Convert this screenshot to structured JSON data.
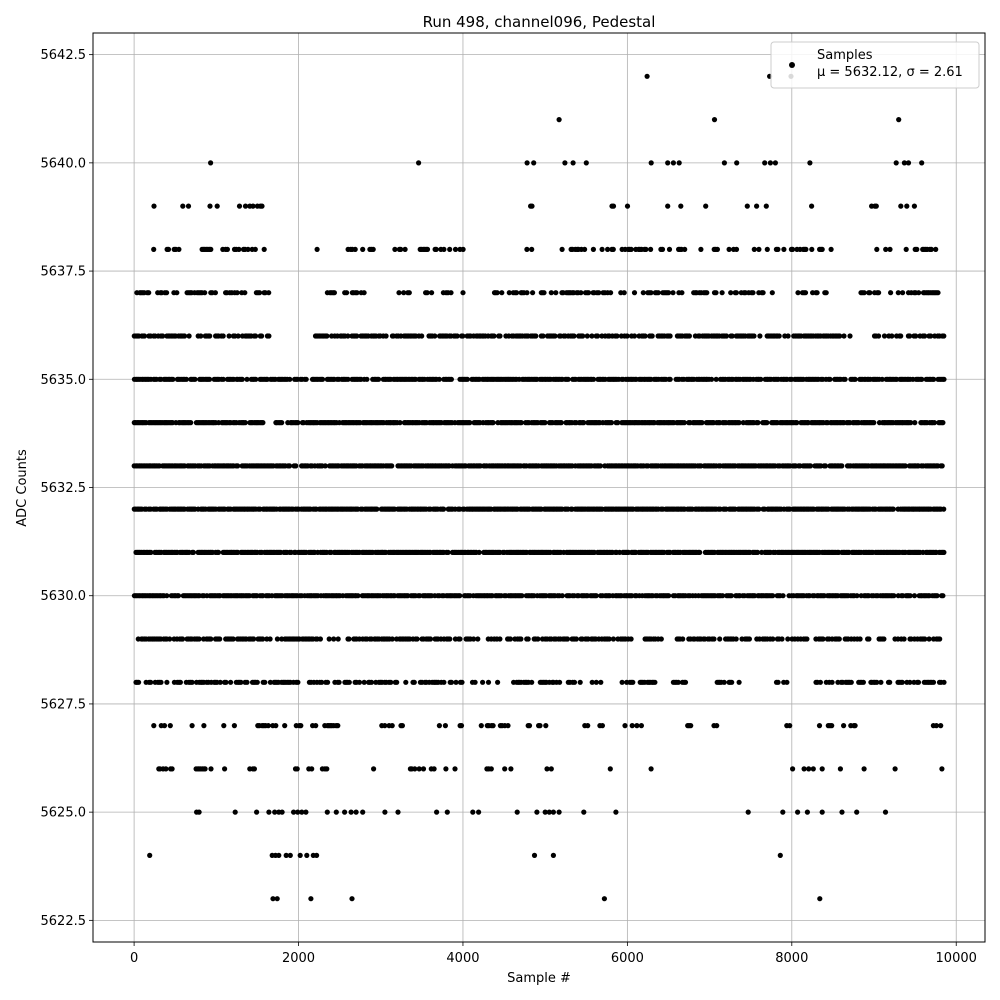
{
  "chart_data": {
    "type": "scatter",
    "title": "Run 498, channel096, Pedestal",
    "xlabel": "Sample #",
    "ylabel": "ADC Counts",
    "xlim": [
      -500,
      10350
    ],
    "ylim": [
      5622.0,
      5643.0
    ],
    "x_ticks": [
      0,
      2000,
      4000,
      6000,
      8000,
      10000
    ],
    "x_tick_labels": [
      "0",
      "2000",
      "4000",
      "6000",
      "8000",
      "10000"
    ],
    "y_ticks": [
      5622.5,
      5625.0,
      5627.5,
      5630.0,
      5632.5,
      5635.0,
      5637.5,
      5640.0,
      5642.5
    ],
    "y_tick_labels": [
      "5622.5",
      "5625.0",
      "5627.5",
      "5630.0",
      "5632.5",
      "5635.0",
      "5637.5",
      "5640.0",
      "5642.5"
    ],
    "grid": true,
    "legend_position": "top-right",
    "series": [
      {
        "name": "Samples",
        "stats_label": "μ = 5632.12, σ = 2.61",
        "mean": 5632.12,
        "sigma": 2.61,
        "n_samples": 9840,
        "color": "#000000",
        "points": [
          [
            190,
            5624
          ],
          [
            1680,
            5624
          ],
          [
            1720,
            5624
          ],
          [
            1760,
            5624
          ],
          [
            1850,
            5624
          ],
          [
            1900,
            5624
          ],
          [
            2020,
            5624
          ],
          [
            2100,
            5624
          ],
          [
            2180,
            5624
          ],
          [
            2220,
            5624
          ],
          [
            4870,
            5624
          ],
          [
            5100,
            5624
          ],
          [
            7860,
            5624
          ],
          [
            1690,
            5623
          ],
          [
            1740,
            5623
          ],
          [
            2150,
            5623
          ],
          [
            2650,
            5623
          ],
          [
            5720,
            5623
          ],
          [
            8340,
            5623
          ],
          [
            6240,
            5642
          ],
          [
            7730,
            5642
          ],
          [
            7990,
            5642
          ],
          [
            5170,
            5641
          ],
          [
            7060,
            5641
          ],
          [
            9300,
            5641
          ],
          [
            930,
            5640
          ],
          [
            3460,
            5640
          ],
          [
            4780,
            5640
          ],
          [
            4860,
            5640
          ],
          [
            5240,
            5640
          ],
          [
            5340,
            5640
          ],
          [
            5500,
            5640
          ],
          [
            6290,
            5640
          ],
          [
            6490,
            5640
          ],
          [
            6560,
            5640
          ],
          [
            6630,
            5640
          ],
          [
            7180,
            5640
          ],
          [
            7330,
            5640
          ],
          [
            7670,
            5640
          ],
          [
            7740,
            5640
          ],
          [
            7800,
            5640
          ],
          [
            8220,
            5640
          ],
          [
            9270,
            5640
          ],
          [
            9370,
            5640
          ],
          [
            9420,
            5640
          ],
          [
            9580,
            5640
          ],
          [
            760,
            5625
          ],
          [
            790,
            5625
          ],
          [
            1230,
            5625
          ],
          [
            1490,
            5625
          ],
          [
            1640,
            5625
          ],
          [
            1710,
            5625
          ],
          [
            1760,
            5625
          ],
          [
            1800,
            5625
          ],
          [
            1940,
            5625
          ],
          [
            1990,
            5625
          ],
          [
            2040,
            5625
          ],
          [
            2090,
            5625
          ],
          [
            2350,
            5625
          ],
          [
            2460,
            5625
          ],
          [
            2560,
            5625
          ],
          [
            2640,
            5625
          ],
          [
            2700,
            5625
          ],
          [
            2780,
            5625
          ],
          [
            3050,
            5625
          ],
          [
            3210,
            5625
          ],
          [
            3680,
            5625
          ],
          [
            3810,
            5625
          ],
          [
            4120,
            5625
          ],
          [
            4190,
            5625
          ],
          [
            4660,
            5625
          ],
          [
            4900,
            5625
          ],
          [
            5000,
            5625
          ],
          [
            5050,
            5625
          ],
          [
            5100,
            5625
          ],
          [
            5170,
            5625
          ],
          [
            5470,
            5625
          ],
          [
            5860,
            5625
          ],
          [
            7470,
            5625
          ],
          [
            7890,
            5625
          ],
          [
            8070,
            5625
          ],
          [
            8190,
            5625
          ],
          [
            8370,
            5625
          ],
          [
            8610,
            5625
          ],
          [
            8790,
            5625
          ],
          [
            9140,
            5625
          ]
        ],
        "dense_rows": [
          {
            "y": 5626,
            "x_ranges": [
              [
                260,
                460
              ],
              [
                700,
                1100
              ],
              [
                1370,
                1460
              ],
              [
                1620,
                2350
              ],
              [
                2840,
                3000
              ],
              [
                3340,
                3950
              ],
              [
                4200,
                4680
              ],
              [
                5000,
                5100
              ],
              [
                5770,
                6000
              ],
              [
                6270,
                6290
              ],
              [
                7370,
                7380
              ],
              [
                7860,
                8420
              ],
              [
                8500,
                8890
              ],
              [
                9250,
                9260
              ],
              [
                9730,
                9830
              ]
            ],
            "density": 0.22
          },
          {
            "y": 5627,
            "x_ranges": [
              [
                150,
                450
              ],
              [
                650,
                900
              ],
              [
                1090,
                1250
              ],
              [
                1450,
                2520
              ],
              [
                2830,
                3280
              ],
              [
                3640,
                3990
              ],
              [
                4130,
                4580
              ],
              [
                4790,
                5040
              ],
              [
                5480,
                5700
              ],
              [
                5860,
                6170
              ],
              [
                6730,
                6790
              ],
              [
                6940,
                7100
              ],
              [
                7830,
                8000
              ],
              [
                8300,
                8780
              ],
              [
                9210,
                9250
              ],
              [
                9700,
                9830
              ]
            ],
            "density": 0.28
          },
          {
            "y": 5628,
            "x_ranges": [
              [
                0,
                1700
              ],
              [
                1700,
                2500
              ],
              [
                2560,
                3200
              ],
              [
                3300,
                4420
              ],
              [
                4470,
                4840
              ],
              [
                4920,
                5680
              ],
              [
                5900,
                6370
              ],
              [
                6560,
                6720
              ],
              [
                7070,
                7480
              ],
              [
                7810,
                7960
              ],
              [
                8290,
                9220
              ],
              [
                9270,
                9850
              ]
            ],
            "density": 0.5
          },
          {
            "y": 5629,
            "x_ranges": [
              [
                50,
                1200
              ],
              [
                1200,
                2480
              ],
              [
                2560,
                3800
              ],
              [
                3800,
                4880
              ],
              [
                4910,
                6060
              ],
              [
                6210,
                6420
              ],
              [
                6600,
                7520
              ],
              [
                7570,
                7990
              ],
              [
                8000,
                9120
              ],
              [
                9200,
                9850
              ]
            ],
            "density": 0.62
          },
          {
            "y": 5630,
            "x_ranges": [
              [
                0,
                4860
              ],
              [
                4900,
                6510
              ],
              [
                6540,
                9850
              ]
            ],
            "density": 0.78
          },
          {
            "y": 5631,
            "x_ranges": [
              [
                0,
                9850
              ]
            ],
            "density": 0.86
          },
          {
            "y": 5632,
            "x_ranges": [
              [
                0,
                9850
              ]
            ],
            "density": 0.9
          },
          {
            "y": 5633,
            "x_ranges": [
              [
                0,
                9850
              ]
            ],
            "density": 0.86
          },
          {
            "y": 5634,
            "x_ranges": [
              [
                0,
                1640
              ],
              [
                1720,
                9850
              ]
            ],
            "density": 0.8
          },
          {
            "y": 5635,
            "x_ranges": [
              [
                0,
                1620
              ],
              [
                1660,
                9850
              ]
            ],
            "density": 0.78
          },
          {
            "y": 5636,
            "x_ranges": [
              [
                0,
                1640
              ],
              [
                2200,
                3500
              ],
              [
                3530,
                7290
              ],
              [
                7320,
                8720
              ],
              [
                9000,
                9850
              ]
            ],
            "density": 0.62
          },
          {
            "y": 5637,
            "x_ranges": [
              [
                30,
                1640
              ],
              [
                2220,
                2800
              ],
              [
                3220,
                3870
              ],
              [
                4000,
                4010
              ],
              [
                4360,
                4850
              ],
              [
                4930,
                6090
              ],
              [
                6120,
                7780
              ],
              [
                8000,
                8430
              ],
              [
                8780,
                8790
              ],
              [
                8840,
                9780
              ]
            ],
            "density": 0.45
          },
          {
            "y": 5638,
            "x_ranges": [
              [
                90,
                620
              ],
              [
                680,
                1580
              ],
              [
                2220,
                2240
              ],
              [
                2580,
                2920
              ],
              [
                3150,
                3330
              ],
              [
                3440,
                4000
              ],
              [
                4260,
                4270
              ],
              [
                4740,
                4860
              ],
              [
                5060,
                5700
              ],
              [
                5720,
                6960
              ],
              [
                7000,
                8480
              ],
              [
                9030,
                9290
              ],
              [
                9300,
                9750
              ]
            ],
            "density": 0.3
          },
          {
            "y": 5639,
            "x_ranges": [
              [
                50,
                60
              ],
              [
                240,
                250
              ],
              [
                550,
                700
              ],
              [
                830,
                1040
              ],
              [
                1280,
                1600
              ],
              [
                2270,
                2280
              ],
              [
                2660,
                2680
              ],
              [
                4800,
                4850
              ],
              [
                5790,
                5830
              ],
              [
                6000,
                6010
              ],
              [
                6160,
                6170
              ],
              [
                6300,
                6310
              ],
              [
                6470,
                6520
              ],
              [
                6610,
                6650
              ],
              [
                6950,
                7040
              ],
              [
                7440,
                7480
              ],
              [
                7570,
                7580
              ],
              [
                7650,
                7760
              ],
              [
                8240,
                8250
              ],
              [
                8880,
                9100
              ],
              [
                9270,
                9400
              ],
              [
                9490,
                9520
              ]
            ],
            "density": 0.32
          }
        ]
      }
    ]
  }
}
